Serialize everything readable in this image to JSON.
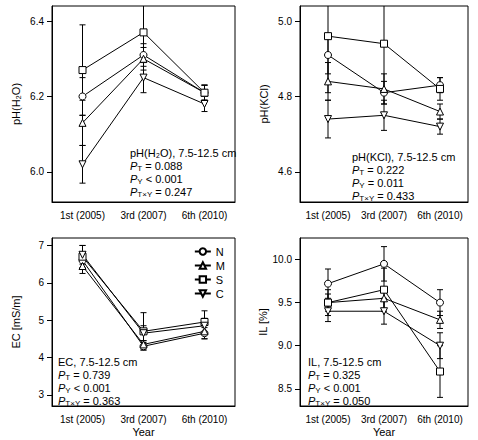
{
  "chart_data": [
    {
      "type": "line",
      "y_label": "pH(H₂O)",
      "categories": [
        "1st (2005)",
        "3rd (2007)",
        "6th (2010)"
      ],
      "ylim": [
        5.92,
        6.44
      ],
      "yticks": [
        {
          "value": 6,
          "label": "6.0"
        },
        6.2,
        6.4
      ],
      "grid": false,
      "annotation": {
        "title": "pH(H₂O), 7.5-12.5 cm",
        "stats": [
          {
            "symbol": "P",
            "subscript": "T",
            "text": "= 0.088"
          },
          {
            "symbol": "P",
            "subscript": "Y",
            "text": "< 0.001"
          },
          {
            "symbol": "P",
            "subscript": "T×Y",
            "text": "= 0.247"
          }
        ]
      },
      "series": [
        {
          "name": "N",
          "color": "#000000",
          "marker": "circle",
          "values": [
            6.2,
            6.31,
            6.21
          ],
          "errors": [
            0.05,
            0.03,
            0.02
          ]
        },
        {
          "name": "M",
          "color": "#000000",
          "marker": "triangle",
          "values": [
            6.13,
            6.3,
            6.21
          ],
          "errors": [
            0.06,
            0.03,
            0.02
          ]
        },
        {
          "name": "S",
          "color": "#000000",
          "marker": "square",
          "values": [
            6.27,
            6.37,
            6.21
          ],
          "errors": [
            0.12,
            0.08,
            0.02
          ]
        },
        {
          "name": "C",
          "color": "#000000",
          "marker": "triangle-down",
          "values": [
            6.02,
            6.25,
            6.18
          ],
          "errors": [
            0.05,
            0.04,
            0.02
          ]
        }
      ]
    },
    {
      "type": "line",
      "y_label": "pH(KCl)",
      "categories": [
        "1st (2005)",
        "3rd (2007)",
        "6th (2010)"
      ],
      "ylim": [
        4.52,
        5.04
      ],
      "yticks": [
        4.6,
        4.8,
        {
          "value": 5,
          "label": "5.0"
        }
      ],
      "grid": false,
      "annotation": {
        "title": "pH(KCl), 7.5-12.5 cm",
        "stats": [
          {
            "symbol": "P",
            "subscript": "T",
            "text": "= 0.222"
          },
          {
            "symbol": "P",
            "subscript": "Y",
            "text": "= 0.011"
          },
          {
            "symbol": "P",
            "subscript": "T×Y",
            "text": "= 0.433"
          }
        ]
      },
      "series": [
        {
          "name": "N",
          "color": "#000000",
          "marker": "circle",
          "values": [
            4.91,
            4.81,
            4.83
          ],
          "errors": [
            0.05,
            0.03,
            0.02
          ]
        },
        {
          "name": "M",
          "color": "#000000",
          "marker": "triangle",
          "values": [
            4.84,
            4.82,
            4.76
          ],
          "errors": [
            0.05,
            0.04,
            0.02
          ]
        },
        {
          "name": "S",
          "color": "#000000",
          "marker": "square",
          "values": [
            4.96,
            4.94,
            4.82
          ],
          "errors": [
            0.15,
            0.13,
            0.03
          ]
        },
        {
          "name": "C",
          "color": "#000000",
          "marker": "triangle-down",
          "values": [
            4.74,
            4.75,
            4.72
          ],
          "errors": [
            0.05,
            0.04,
            0.02
          ]
        }
      ]
    },
    {
      "type": "line",
      "y_label": "EC [mS/m]",
      "x_label": "Year",
      "categories": [
        "1st (2005)",
        "3rd (2007)",
        "6th (2010)"
      ],
      "ylim": [
        2.7,
        7.2
      ],
      "yticks": [
        3,
        4,
        5,
        6,
        7
      ],
      "grid": false,
      "legend": "upper right",
      "annotation": {
        "title": "EC, 7.5-12.5 cm",
        "stats": [
          {
            "symbol": "P",
            "subscript": "T",
            "text": "= 0.739"
          },
          {
            "symbol": "P",
            "subscript": "Y",
            "text": "< 0.001"
          },
          {
            "symbol": "P",
            "subscript": "T×Y",
            "text": "= 0.363"
          }
        ]
      },
      "series": [
        {
          "name": "N",
          "color": "#000000",
          "marker": "circle",
          "values": [
            6.6,
            4.3,
            4.65
          ],
          "errors": [
            0.2,
            0.1,
            0.15
          ]
        },
        {
          "name": "M",
          "color": "#000000",
          "marker": "triangle",
          "values": [
            6.45,
            4.35,
            4.7
          ],
          "errors": [
            0.2,
            0.1,
            0.2
          ]
        },
        {
          "name": "S",
          "color": "#000000",
          "marker": "square",
          "values": [
            6.7,
            4.7,
            4.95
          ],
          "errors": [
            0.3,
            0.5,
            0.3
          ]
        },
        {
          "name": "C",
          "color": "#000000",
          "marker": "triangle-down",
          "values": [
            6.75,
            4.65,
            4.85
          ],
          "errors": [
            0.25,
            0.2,
            0.2
          ]
        }
      ]
    },
    {
      "type": "line",
      "y_label": "IL [%]",
      "x_label": "Year",
      "categories": [
        "1st (2005)",
        "3rd (2007)",
        "6th (2010)"
      ],
      "ylim": [
        8.3,
        10.25
      ],
      "yticks": [
        8.5,
        {
          "value": 9,
          "label": "9.0"
        },
        9.5,
        {
          "value": 10,
          "label": "10.0"
        }
      ],
      "grid": false,
      "annotation": {
        "title": "IL, 7.5-12.5 cm",
        "stats": [
          {
            "symbol": "P",
            "subscript": "T",
            "text": "= 0.325"
          },
          {
            "symbol": "P",
            "subscript": "Y",
            "text": "< 0.001"
          },
          {
            "symbol": "P",
            "subscript": "T×Y",
            "text": "= 0.050"
          }
        ]
      },
      "series": [
        {
          "name": "N",
          "color": "#000000",
          "marker": "circle",
          "values": [
            9.72,
            9.95,
            9.5
          ],
          "errors": [
            0.17,
            0.2,
            0.15
          ]
        },
        {
          "name": "M",
          "color": "#000000",
          "marker": "triangle",
          "values": [
            9.5,
            9.55,
            9.3
          ],
          "errors": [
            0.15,
            0.12,
            0.1
          ]
        },
        {
          "name": "S",
          "color": "#000000",
          "marker": "square",
          "values": [
            9.5,
            9.65,
            8.7
          ],
          "errors": [
            0.1,
            0.25,
            0.3
          ]
        },
        {
          "name": "C",
          "color": "#000000",
          "marker": "triangle-down",
          "values": [
            9.4,
            9.4,
            9.0
          ],
          "errors": [
            0.12,
            0.15,
            0.15
          ]
        }
      ]
    }
  ]
}
